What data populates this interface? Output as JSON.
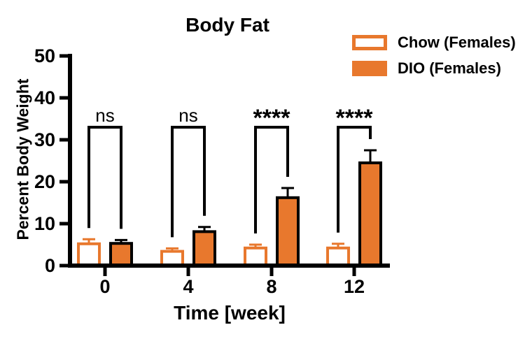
{
  "title": "Body Fat",
  "y_axis_title": "Percent Body Weight",
  "x_axis_title": "Time [week]",
  "legend": {
    "items": [
      {
        "label": "Chow (Females)",
        "swatch": "outlined-orange"
      },
      {
        "label": "DIO (Females)",
        "swatch": "filled-orange"
      }
    ]
  },
  "colors": {
    "orange": "#E8782D",
    "black": "#000000",
    "white": "#FFFFFF"
  },
  "chart_data": {
    "type": "bar",
    "title": "Body Fat",
    "xlabel": "Time [week]",
    "ylabel": "Percent Body Weight",
    "ylim": [
      0,
      50
    ],
    "y_ticks": [
      "0",
      "10",
      "20",
      "30",
      "40",
      "50"
    ],
    "categories": [
      "0",
      "4",
      "8",
      "12"
    ],
    "grid": false,
    "legend_position": "top-right",
    "error_bars": "upper",
    "series": [
      {
        "name": "Chow (Females)",
        "values": [
          5.2,
          3.4,
          4.2,
          4.2
        ],
        "errors_plus": [
          1.1,
          0.7,
          0.8,
          1.0
        ],
        "fill": "#FFFFFF",
        "stroke": "#E8782D"
      },
      {
        "name": "DIO (Females)",
        "values": [
          5.3,
          8.1,
          16.2,
          24.5
        ],
        "errors_plus": [
          0.8,
          1.1,
          2.3,
          3.0
        ],
        "fill": "#E8782D",
        "stroke": "#000000"
      }
    ],
    "significance": [
      {
        "category": "0",
        "label": "ns",
        "bold": false
      },
      {
        "category": "4",
        "label": "ns",
        "bold": false
      },
      {
        "category": "8",
        "label": "****",
        "bold": true
      },
      {
        "category": "12",
        "label": "****",
        "bold": true
      }
    ],
    "bracket_top_value": 33
  }
}
